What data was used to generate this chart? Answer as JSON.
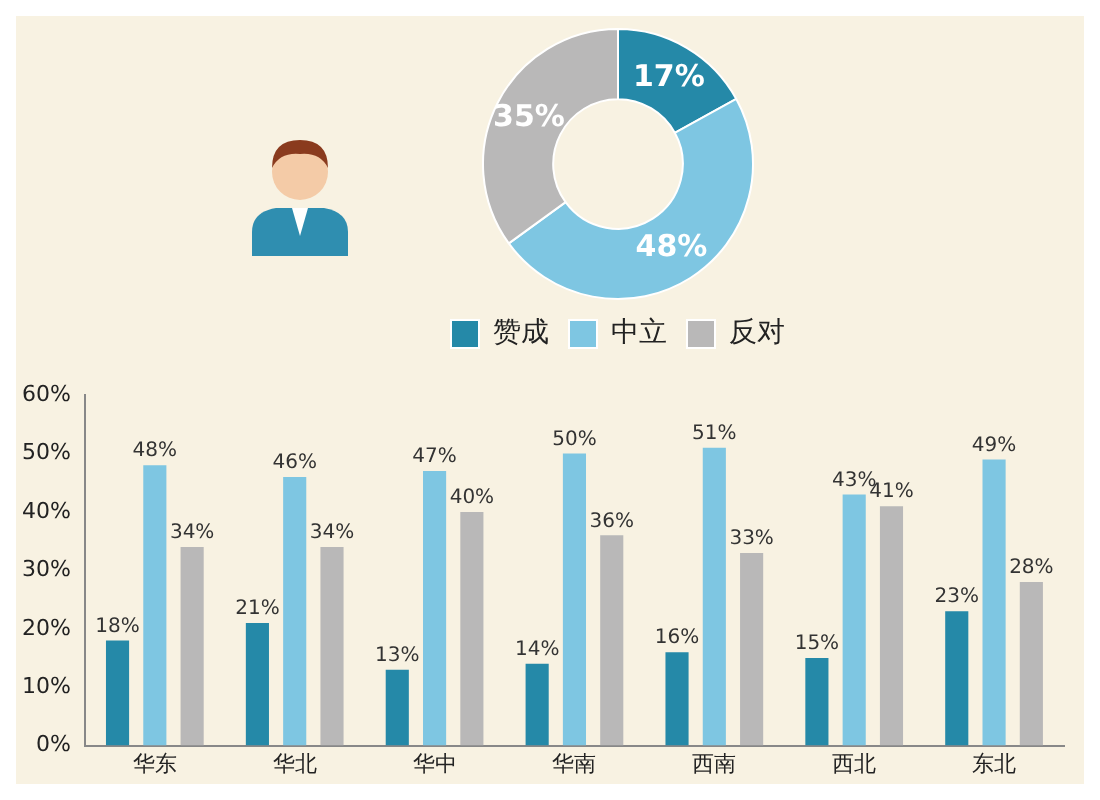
{
  "chart_data": [
    {
      "type": "donut",
      "categories": [
        "赞成",
        "中立",
        "反对"
      ],
      "values": [
        17,
        48,
        35
      ],
      "colors": [
        "#2589a8",
        "#7ec6e2",
        "#b9b8b8"
      ],
      "value_labels": [
        "17%",
        "48%",
        "35%"
      ],
      "legend": "bottom"
    },
    {
      "type": "bar",
      "categories": [
        "华东",
        "华北",
        "华中",
        "华南",
        "西南",
        "西北",
        "东北"
      ],
      "series": [
        {
          "color": "#2589a8",
          "values": [
            18,
            21,
            13,
            14,
            16,
            15,
            23
          ],
          "value_labels": [
            "18%",
            "21%",
            "13%",
            "14%",
            "16%",
            "15%",
            "23%"
          ]
        },
        {
          "color": "#7ec6e2",
          "values": [
            48,
            46,
            47,
            50,
            51,
            43,
            49
          ],
          "value_labels": [
            "48%",
            "46%",
            "47%",
            "50%",
            "51%",
            "43%",
            "49%"
          ]
        },
        {
          "color": "#b9b8b8",
          "values": [
            34,
            34,
            40,
            36,
            33,
            41,
            28
          ],
          "value_labels": [
            "34%",
            "34%",
            "40%",
            "36%",
            "33%",
            "41%",
            "28%"
          ]
        }
      ],
      "ylim": [
        0,
        60
      ],
      "yticks": [
        {
          "value": 0,
          "label": "0%"
        },
        {
          "value": 10,
          "label": "10%"
        },
        {
          "value": 20,
          "label": "20%"
        },
        {
          "value": 30,
          "label": "30%"
        },
        {
          "value": 40,
          "label": "40%"
        },
        {
          "value": 50,
          "label": "50%"
        },
        {
          "value": 60,
          "label": "60%"
        }
      ],
      "grid": false
    }
  ]
}
